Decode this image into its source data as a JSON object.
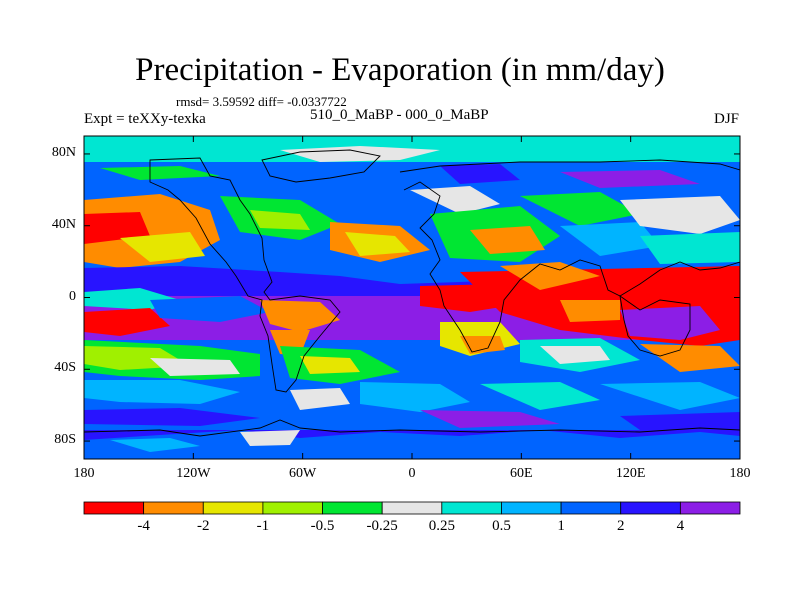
{
  "title": "Precipitation - Evaporation (in mm/day)",
  "stats": "rmsd= 3.59592 diff= -0.0337722",
  "experiment": "Expt = teXXy-texka",
  "case": "510_0_MaBP - 000_0_MaBP",
  "season": "DJF",
  "map": {
    "lon_range": [
      -180,
      180
    ],
    "lat_range": [
      -90,
      90
    ],
    "x_tick_labels": [
      "180",
      "120W",
      "60W",
      "0",
      "60E",
      "120E",
      "180"
    ],
    "x_tick_values": [
      -180,
      -120,
      -60,
      0,
      60,
      120,
      180
    ],
    "y_tick_labels": [
      "80N",
      "40N",
      "0",
      "40S",
      "80S"
    ],
    "y_tick_values": [
      80,
      40,
      0,
      -40,
      -80
    ]
  },
  "colorbar": {
    "labels": [
      "-4",
      "-2",
      "-1",
      "-0.5",
      "-0.25",
      "0.25",
      "0.5",
      "1",
      "2",
      "4"
    ],
    "colors": [
      "#ff0000",
      "#ff8c00",
      "#e6e600",
      "#a0f000",
      "#00e632",
      "#e6e6e6",
      "#00e6d2",
      "#00b4ff",
      "#0064ff",
      "#2814ff",
      "#8c1ee6"
    ]
  }
}
